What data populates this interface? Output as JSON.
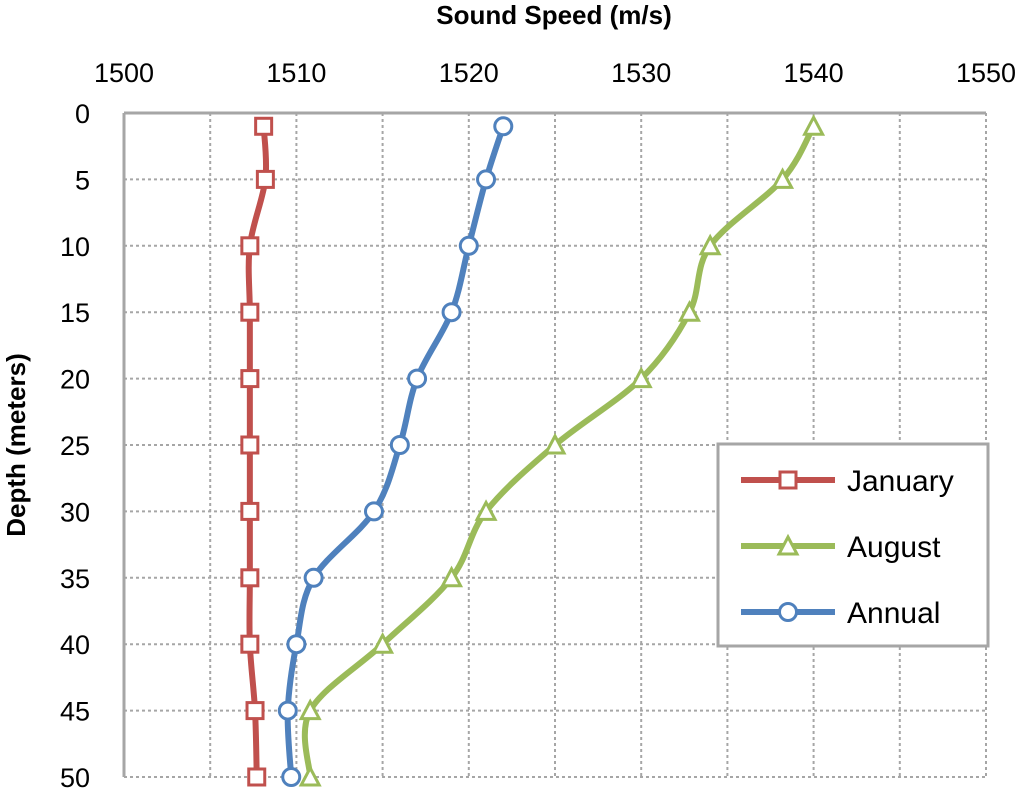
{
  "chart_data": {
    "type": "line",
    "title": "",
    "xlabel": "Sound Speed (m/s)",
    "ylabel": "Depth (meters)",
    "x_axis_position": "top",
    "y_axis_inverted": true,
    "xlim": [
      1500,
      1550
    ],
    "ylim": [
      0,
      50
    ],
    "xticks": [
      1500,
      1510,
      1520,
      1530,
      1540,
      1550
    ],
    "yticks": [
      0,
      5,
      10,
      15,
      20,
      25,
      30,
      35,
      40,
      45,
      50
    ],
    "grid": true,
    "legend_position": "right",
    "depth": [
      1,
      5,
      10,
      15,
      20,
      25,
      30,
      35,
      40,
      45,
      50
    ],
    "series": [
      {
        "name": "January",
        "color": "#C0504D",
        "marker": "square",
        "values": [
          1508.1,
          1508.2,
          1507.3,
          1507.3,
          1507.3,
          1507.3,
          1507.3,
          1507.3,
          1507.3,
          1507.6,
          1507.7
        ]
      },
      {
        "name": "August",
        "color": "#9BBB59",
        "marker": "triangle",
        "values": [
          1540.0,
          1538.2,
          1534.0,
          1532.8,
          1530.0,
          1525.0,
          1521.0,
          1519.0,
          1515.0,
          1510.8,
          1510.8
        ]
      },
      {
        "name": "Annual",
        "color": "#4F81BD",
        "marker": "circle",
        "values": [
          1522.0,
          1521.0,
          1520.0,
          1519.0,
          1517.0,
          1516.0,
          1514.5,
          1511.0,
          1510.0,
          1509.5,
          1509.7
        ]
      }
    ]
  }
}
